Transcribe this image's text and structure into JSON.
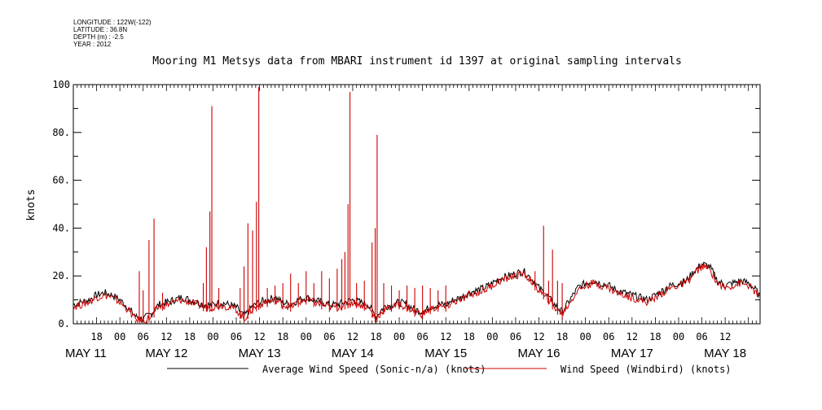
{
  "header": {
    "longitude": "LONGITUDE : 122W(-122)",
    "latitude": "LATITUDE : 36.8N",
    "depth": "DEPTH (m) : -2.5",
    "year": "YEAR : 2012"
  },
  "chart_data": {
    "type": "line",
    "title": "Mooring M1 Metsys data from MBARI instrument id 1397 at original sampling intervals",
    "ylabel": "knots",
    "xlabel": "",
    "ylim": [
      0,
      100
    ],
    "xlim_hours": [
      0,
      177
    ],
    "y_ticks": [
      0,
      20,
      40,
      60,
      80,
      100
    ],
    "y_tick_labels": [
      "0.",
      "20.",
      "40.",
      "60.",
      "80.",
      "100"
    ],
    "x_hour_ticks": [
      {
        "h": 6,
        "label": "18"
      },
      {
        "h": 12,
        "label": "00"
      },
      {
        "h": 18,
        "label": "06"
      },
      {
        "h": 24,
        "label": "12"
      },
      {
        "h": 30,
        "label": "18"
      },
      {
        "h": 36,
        "label": "00"
      },
      {
        "h": 42,
        "label": "06"
      },
      {
        "h": 48,
        "label": "12"
      },
      {
        "h": 54,
        "label": "18"
      },
      {
        "h": 60,
        "label": "00"
      },
      {
        "h": 66,
        "label": "06"
      },
      {
        "h": 72,
        "label": "12"
      },
      {
        "h": 78,
        "label": "18"
      },
      {
        "h": 84,
        "label": "00"
      },
      {
        "h": 90,
        "label": "06"
      },
      {
        "h": 96,
        "label": "12"
      },
      {
        "h": 102,
        "label": "18"
      },
      {
        "h": 108,
        "label": "00"
      },
      {
        "h": 114,
        "label": "06"
      },
      {
        "h": 120,
        "label": "12"
      },
      {
        "h": 126,
        "label": "18"
      },
      {
        "h": 132,
        "label": "00"
      },
      {
        "h": 138,
        "label": "06"
      },
      {
        "h": 144,
        "label": "12"
      },
      {
        "h": 150,
        "label": "18"
      },
      {
        "h": 156,
        "label": "00"
      },
      {
        "h": 162,
        "label": "06"
      },
      {
        "h": 168,
        "label": "12"
      }
    ],
    "date_labels": [
      {
        "h": 0,
        "label": "MAY 11"
      },
      {
        "h": 24,
        "label": "MAY 12"
      },
      {
        "h": 48,
        "label": "MAY 13"
      },
      {
        "h": 72,
        "label": "MAY 14"
      },
      {
        "h": 96,
        "label": "MAY 15"
      },
      {
        "h": 120,
        "label": "MAY 16"
      },
      {
        "h": 144,
        "label": "MAY 17"
      },
      {
        "h": 168,
        "label": "MAY 18"
      }
    ],
    "series": [
      {
        "name": "Average Wind Speed (Sonic-n/a) (knots)",
        "color": "#000000",
        "x": [
          0,
          2,
          4,
          6,
          8,
          10,
          12,
          14,
          16,
          18,
          20,
          22,
          24,
          26,
          28,
          30,
          32,
          34,
          36,
          38,
          40,
          42,
          44,
          46,
          48,
          50,
          52,
          54,
          56,
          58,
          60,
          62,
          64,
          66,
          68,
          70,
          72,
          74,
          76,
          78,
          80,
          82,
          84,
          86,
          88,
          90,
          92,
          94,
          96,
          98,
          100,
          102,
          104,
          106,
          108,
          110,
          112,
          114,
          116,
          118,
          120,
          122,
          124,
          126,
          128,
          130,
          132,
          134,
          136,
          138,
          140,
          142,
          144,
          146,
          148,
          150,
          152,
          154,
          156,
          158,
          160,
          162,
          164,
          166,
          168,
          170,
          172,
          174,
          176,
          177
        ],
        "y": [
          8,
          9,
          10,
          12,
          13,
          12,
          10,
          7,
          3,
          2,
          4,
          8,
          9,
          10,
          11,
          10,
          9,
          8,
          8,
          9,
          8,
          7,
          3,
          7,
          9,
          10,
          11,
          9,
          8,
          10,
          11,
          10,
          9,
          8,
          8,
          9,
          10,
          9,
          8,
          3,
          7,
          8,
          9,
          8,
          6,
          5,
          7,
          8,
          8,
          10,
          11,
          13,
          14,
          15,
          17,
          19,
          20,
          21,
          22,
          19,
          15,
          12,
          8,
          5,
          10,
          15,
          17,
          18,
          17,
          16,
          14,
          13,
          12,
          11,
          10,
          12,
          14,
          16,
          17,
          18,
          22,
          25,
          24,
          18,
          16,
          17,
          18,
          17,
          14,
          11
        ]
      },
      {
        "name": "Wind Speed (Windbird) (knots)",
        "color": "#cc0000",
        "x": [
          0,
          2,
          4,
          6,
          8,
          10,
          12,
          14,
          16,
          18,
          20,
          22,
          24,
          26,
          28,
          30,
          32,
          34,
          36,
          38,
          40,
          42,
          44,
          46,
          48,
          50,
          52,
          54,
          56,
          58,
          60,
          62,
          64,
          66,
          68,
          70,
          72,
          74,
          76,
          78,
          80,
          82,
          84,
          86,
          88,
          90,
          92,
          94,
          96,
          98,
          100,
          102,
          104,
          106,
          108,
          110,
          112,
          114,
          116,
          118,
          120,
          122,
          124,
          126,
          128,
          130,
          132,
          134,
          136,
          138,
          140,
          142,
          144,
          146,
          148,
          150,
          152,
          154,
          156,
          158,
          160,
          162,
          164,
          166,
          168,
          170,
          172,
          174,
          176,
          177
        ],
        "y": [
          7,
          8,
          9,
          11,
          12,
          11,
          9,
          6,
          2,
          1,
          3,
          7,
          8,
          9,
          10,
          9,
          8,
          7,
          7,
          8,
          7,
          6,
          2,
          6,
          8,
          9,
          10,
          8,
          7,
          9,
          10,
          9,
          8,
          7,
          7,
          8,
          9,
          8,
          7,
          2,
          6,
          7,
          8,
          7,
          5,
          4,
          6,
          7,
          7,
          9,
          10,
          12,
          13,
          14,
          16,
          18,
          19,
          20,
          21,
          18,
          14,
          11,
          7,
          4,
          9,
          14,
          16,
          17,
          16,
          15,
          13,
          12,
          11,
          10,
          9,
          11,
          13,
          15,
          16,
          17,
          21,
          24,
          23,
          17,
          15,
          16,
          17,
          16,
          13,
          10
        ]
      }
    ],
    "spikes": [
      {
        "h": 17.0,
        "v": 22
      },
      {
        "h": 18.0,
        "v": 14
      },
      {
        "h": 19.5,
        "v": 35
      },
      {
        "h": 20.8,
        "v": 44
      },
      {
        "h": 23.0,
        "v": 13
      },
      {
        "h": 33.5,
        "v": 17
      },
      {
        "h": 34.3,
        "v": 32
      },
      {
        "h": 35.2,
        "v": 47
      },
      {
        "h": 35.7,
        "v": 91
      },
      {
        "h": 37.5,
        "v": 15
      },
      {
        "h": 43.0,
        "v": 15
      },
      {
        "h": 44.0,
        "v": 24
      },
      {
        "h": 45.0,
        "v": 42
      },
      {
        "h": 46.2,
        "v": 39
      },
      {
        "h": 47.2,
        "v": 51
      },
      {
        "h": 47.8,
        "v": 99
      },
      {
        "h": 50,
        "v": 15
      },
      {
        "h": 52,
        "v": 16
      },
      {
        "h": 54,
        "v": 17
      },
      {
        "h": 56,
        "v": 21
      },
      {
        "h": 58,
        "v": 17
      },
      {
        "h": 60,
        "v": 22
      },
      {
        "h": 62,
        "v": 17
      },
      {
        "h": 64,
        "v": 22
      },
      {
        "h": 66,
        "v": 19
      },
      {
        "h": 68,
        "v": 23
      },
      {
        "h": 69.2,
        "v": 27
      },
      {
        "h": 70.0,
        "v": 30
      },
      {
        "h": 70.8,
        "v": 50
      },
      {
        "h": 71.3,
        "v": 97
      },
      {
        "h": 73,
        "v": 17
      },
      {
        "h": 75,
        "v": 18
      },
      {
        "h": 77.0,
        "v": 34
      },
      {
        "h": 77.8,
        "v": 40
      },
      {
        "h": 78.3,
        "v": 79
      },
      {
        "h": 80,
        "v": 17
      },
      {
        "h": 82,
        "v": 16
      },
      {
        "h": 84,
        "v": 14
      },
      {
        "h": 86,
        "v": 16
      },
      {
        "h": 88,
        "v": 15
      },
      {
        "h": 90,
        "v": 16
      },
      {
        "h": 92,
        "v": 15
      },
      {
        "h": 94,
        "v": 14
      },
      {
        "h": 96,
        "v": 16
      },
      {
        "h": 119.0,
        "v": 22
      },
      {
        "h": 121.2,
        "v": 41
      },
      {
        "h": 122.5,
        "v": 18
      },
      {
        "h": 123.5,
        "v": 31
      },
      {
        "h": 124.8,
        "v": 18
      },
      {
        "h": 126.0,
        "v": 17
      }
    ]
  }
}
